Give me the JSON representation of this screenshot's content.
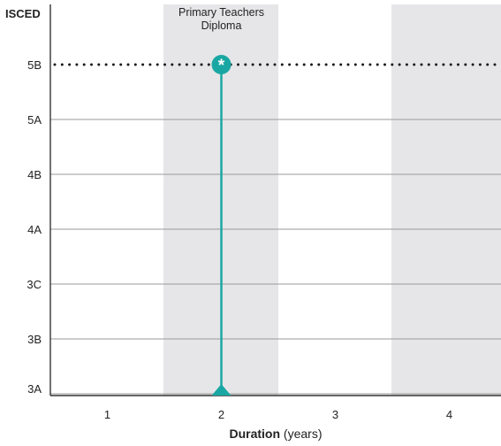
{
  "chart_data": {
    "type": "line",
    "ylabel": "ISCED",
    "xlabel_bold": "Duration",
    "xlabel_rest": " (years)",
    "x_categories": [
      "1",
      "2",
      "3",
      "4"
    ],
    "y_categories": [
      "3A",
      "3B",
      "3C",
      "4A",
      "4B",
      "5A",
      "5B"
    ],
    "shaded_columns": [
      "2",
      "4"
    ],
    "reference_line": {
      "level": "5B",
      "style": "dotted"
    },
    "grid": true,
    "series": [
      {
        "label": "Primary Teachers Diploma",
        "duration_years": 2,
        "from_level": "3A",
        "to_level": "5B",
        "end_marker_symbol": "*"
      }
    ],
    "colors": {
      "series": "#1aa7a3",
      "shade": "#e6e6e8",
      "grid": "#9a9a9a",
      "axis": "#333333",
      "reference": "#1a1a1a"
    }
  }
}
